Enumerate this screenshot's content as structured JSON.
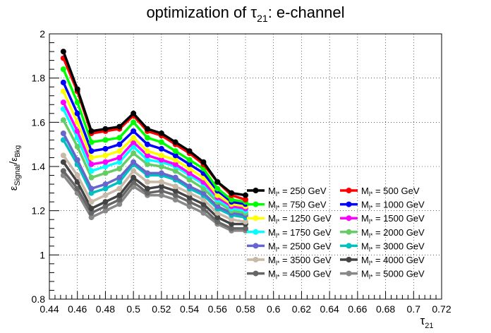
{
  "chart_data": {
    "type": "line",
    "title_main": "optimization of ",
    "title_tau": "τ",
    "title_tau_sub": "21",
    "title_rest": ":  e-channel",
    "xlabel_sym": "τ",
    "xlabel_sub": "21",
    "ylabel_eps": "ε",
    "ylabel_sig_sub": "Signal",
    "ylabel_bkg_sub": "Bkg",
    "xlim": [
      0.44,
      0.72
    ],
    "ylim": [
      0.8,
      2.0
    ],
    "x_ticks": [
      "0.44",
      "0.46",
      "0.48",
      "0.5",
      "0.52",
      "0.54",
      "0.56",
      "0.58",
      "0.6",
      "0.62",
      "0.64",
      "0.66",
      "0.68",
      "0.7",
      "0.72"
    ],
    "y_ticks": [
      "0.8",
      "1",
      "1.2",
      "1.4",
      "1.6",
      "1.8",
      "2"
    ],
    "grid": true,
    "legend_position": "bottom-right",
    "legend_prefix": "M",
    "legend_sub": "l*",
    "x": [
      0.45,
      0.46,
      0.47,
      0.48,
      0.49,
      0.5,
      0.51,
      0.52,
      0.53,
      0.54,
      0.55,
      0.56,
      0.57,
      0.58
    ],
    "series": [
      {
        "name": " = 250 GeV",
        "color": "#000000",
        "values": [
          1.92,
          1.75,
          1.56,
          1.57,
          1.58,
          1.64,
          1.57,
          1.55,
          1.51,
          1.47,
          1.42,
          1.33,
          1.28,
          1.27
        ]
      },
      {
        "name": " = 500 GeV",
        "color": "#ff0000",
        "values": [
          1.89,
          1.74,
          1.55,
          1.56,
          1.57,
          1.63,
          1.56,
          1.54,
          1.5,
          1.46,
          1.41,
          1.33,
          1.27,
          1.25
        ]
      },
      {
        "name": " = 750 GeV",
        "color": "#00ff00",
        "values": [
          1.84,
          1.69,
          1.51,
          1.52,
          1.53,
          1.6,
          1.53,
          1.51,
          1.47,
          1.43,
          1.39,
          1.3,
          1.25,
          1.24
        ]
      },
      {
        "name": " = 1000 GeV",
        "color": "#0000ff",
        "values": [
          1.78,
          1.64,
          1.47,
          1.48,
          1.5,
          1.56,
          1.5,
          1.48,
          1.45,
          1.41,
          1.37,
          1.29,
          1.24,
          1.23
        ]
      },
      {
        "name": " = 1250 GeV",
        "color": "#ffff00",
        "values": [
          1.74,
          1.6,
          1.44,
          1.45,
          1.47,
          1.53,
          1.47,
          1.45,
          1.43,
          1.39,
          1.35,
          1.27,
          1.23,
          1.22
        ]
      },
      {
        "name": " = 1500 GeV",
        "color": "#ff00ff",
        "values": [
          1.69,
          1.56,
          1.41,
          1.42,
          1.44,
          1.51,
          1.45,
          1.43,
          1.41,
          1.37,
          1.33,
          1.26,
          1.22,
          1.21
        ]
      },
      {
        "name": " = 1750 GeV",
        "color": "#00ffff",
        "values": [
          1.66,
          1.53,
          1.38,
          1.4,
          1.42,
          1.49,
          1.43,
          1.42,
          1.4,
          1.36,
          1.32,
          1.25,
          1.21,
          1.2
        ]
      },
      {
        "name": " = 2000 GeV",
        "color": "#66cc66",
        "values": [
          1.61,
          1.49,
          1.35,
          1.37,
          1.39,
          1.46,
          1.41,
          1.4,
          1.38,
          1.34,
          1.3,
          1.24,
          1.2,
          1.19
        ]
      },
      {
        "name": " = 2500 GeV",
        "color": "#6666cc",
        "values": [
          1.55,
          1.43,
          1.3,
          1.32,
          1.35,
          1.42,
          1.37,
          1.37,
          1.35,
          1.31,
          1.28,
          1.22,
          1.19,
          1.18
        ]
      },
      {
        "name": " = 3000 GeV",
        "color": "#00c0c0",
        "values": [
          1.52,
          1.41,
          1.28,
          1.3,
          1.33,
          1.41,
          1.36,
          1.36,
          1.34,
          1.3,
          1.27,
          1.21,
          1.18,
          1.17
        ]
      },
      {
        "name": " = 3500 GeV",
        "color": "#c8b8a8",
        "values": [
          1.45,
          1.36,
          1.24,
          1.27,
          1.3,
          1.38,
          1.33,
          1.33,
          1.31,
          1.28,
          1.25,
          1.19,
          1.16,
          1.15
        ]
      },
      {
        "name": " = 4000 GeV",
        "color": "#444444",
        "values": [
          1.42,
          1.33,
          1.21,
          1.24,
          1.27,
          1.35,
          1.3,
          1.31,
          1.29,
          1.26,
          1.23,
          1.17,
          1.14,
          1.14
        ]
      },
      {
        "name": " = 4500 GeV",
        "color": "#666666",
        "values": [
          1.38,
          1.3,
          1.19,
          1.22,
          1.25,
          1.33,
          1.28,
          1.29,
          1.27,
          1.24,
          1.21,
          1.15,
          1.12,
          1.12
        ]
      },
      {
        "name": " = 5000 GeV",
        "color": "#888888",
        "values": [
          1.36,
          1.28,
          1.17,
          1.2,
          1.23,
          1.31,
          1.27,
          1.27,
          1.25,
          1.22,
          1.19,
          1.14,
          1.11,
          1.11
        ]
      }
    ]
  }
}
